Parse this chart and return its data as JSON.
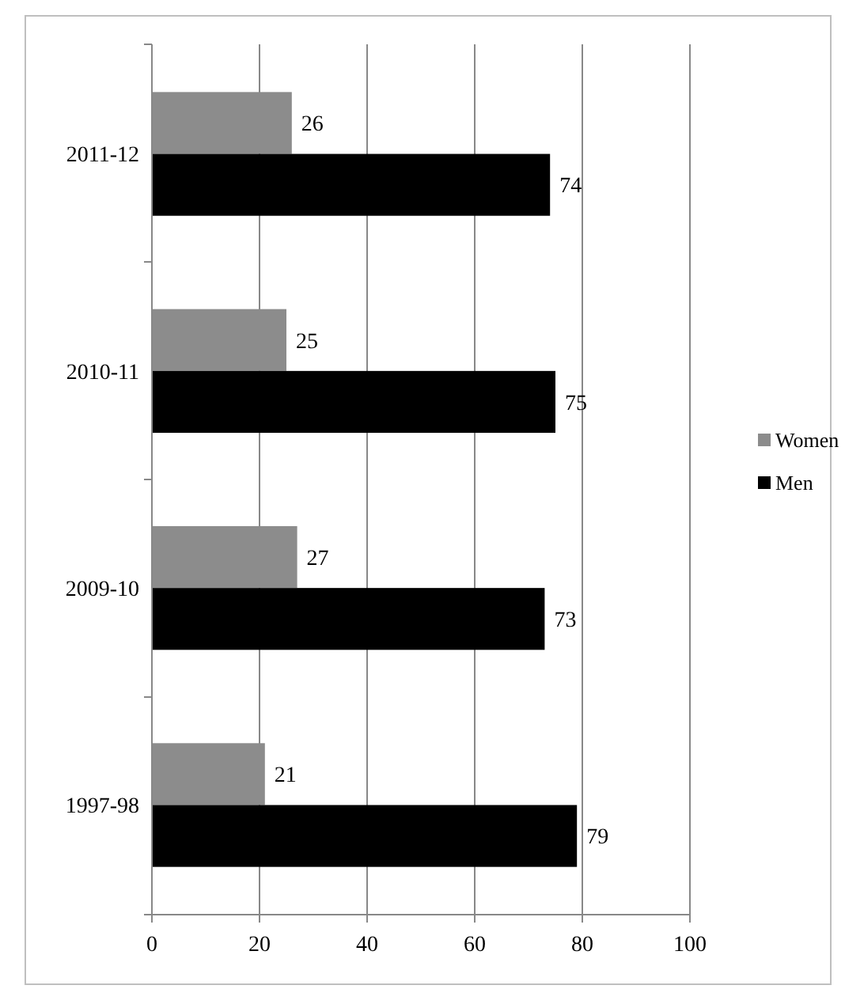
{
  "chart_data": {
    "type": "bar",
    "orientation": "horizontal",
    "categories": [
      "2011-12",
      "2010-11",
      "2009-10",
      "1997-98"
    ],
    "series": [
      {
        "name": "Women",
        "color": "#8c8c8c",
        "values": [
          26,
          25,
          27,
          21
        ]
      },
      {
        "name": "Men",
        "color": "#000000",
        "values": [
          74,
          75,
          73,
          79
        ]
      }
    ],
    "xlim": [
      0,
      100
    ],
    "xticks": [
      0,
      20,
      40,
      60,
      80,
      100
    ],
    "grid": "x",
    "legend": "right",
    "data_labels": true
  }
}
